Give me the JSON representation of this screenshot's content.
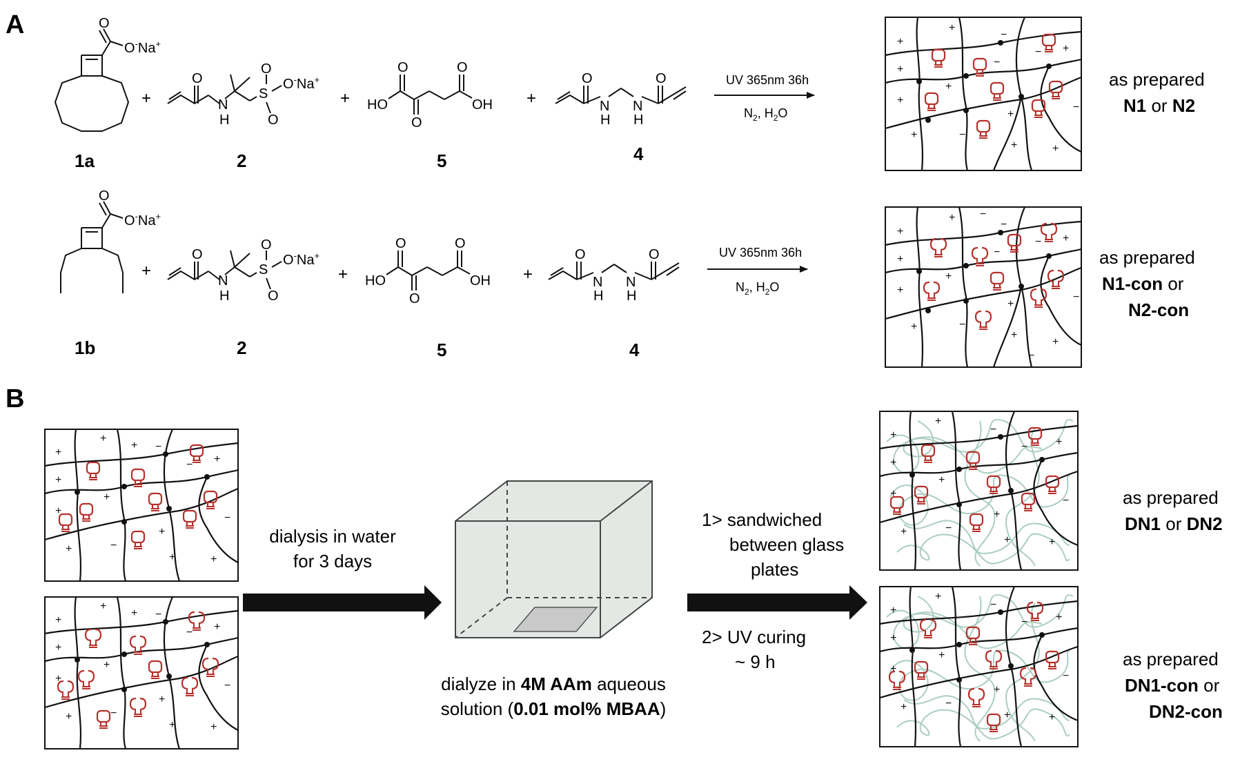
{
  "panelA": {
    "letter": "A",
    "row1": {
      "labels": {
        "c1": "1a",
        "c2": "2",
        "c3": "5",
        "c4": "4"
      },
      "plus": "+",
      "arrow_top": "UV 365nm 36h",
      "arrow_bottom_main": "N",
      "arrow_bottom_sub1": "2",
      "arrow_bottom_mid": ", H",
      "arrow_bottom_sub2": "2",
      "arrow_bottom_end": "O",
      "result_line1": "as prepared",
      "result_bold1": "N1",
      "result_or": " or ",
      "result_bold2": "N2"
    },
    "row2": {
      "labels": {
        "c1": "1b",
        "c2": "2",
        "c3": "5",
        "c4": "4"
      },
      "plus": "+",
      "arrow_top": "UV 365nm 36h",
      "arrow_bottom_main": "N",
      "arrow_bottom_sub1": "2",
      "arrow_bottom_mid": ", H",
      "arrow_bottom_sub2": "2",
      "arrow_bottom_end": "O",
      "result_line1": "as prepared",
      "result_bold1": "N1-con",
      "result_or": " or",
      "result_bold2": "N2-con"
    },
    "atoms": {
      "O_minus": "O",
      "minus": "-",
      "Na_plus": "Na",
      "plus_sign": "+",
      "O": "O",
      "S": "S",
      "N": "N",
      "H": "H",
      "HO": "HO",
      "OH": "OH"
    }
  },
  "panelB": {
    "letter": "B",
    "arrow1_line1": "dialysis in water",
    "arrow1_line2": "for 3 days",
    "box_caption_line1_pre": "dialyze in ",
    "box_caption_line1_bold": "4M AAm",
    "box_caption_line1_post": " aqueous",
    "box_caption_line2_pre": "solution (",
    "box_caption_line2_bold": "0.01 mol% MBAA",
    "box_caption_line2_post": ")",
    "step1_line1": "1> sandwiched",
    "step1_line2": "between glass",
    "step1_line3": "plates",
    "step2_line1": "2> UV curing",
    "step2_line2": "~ 9 h",
    "result1_line1": "as prepared",
    "result1_bold1": "DN1",
    "result1_or": " or ",
    "result1_bold2": "DN2",
    "result2_line1": "as prepared",
    "result2_bold1": "DN1-con",
    "result2_or": " or",
    "result2_bold2": "DN2-con"
  },
  "colors": {
    "network": "#111111",
    "crosslink": "#b5302a",
    "secondary_network": "#a7cbbd",
    "box_fill": "#e3e8e4",
    "sample": "#c9c9c9"
  }
}
